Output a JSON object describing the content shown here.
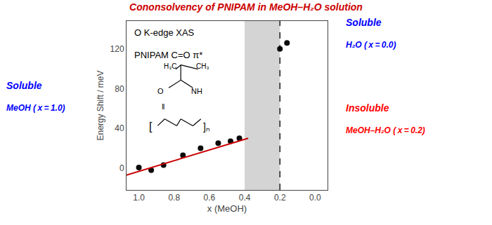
{
  "chart_data": {
    "type": "scatter",
    "title": "Cononsolvency of PNIPAM in MeOH–H₂O solution",
    "title_color": "#cc0000",
    "xlabel": "x (MeOH)",
    "ylabel": "Energy Shift / meV",
    "xlim": [
      1.07,
      -0.07
    ],
    "ylim": [
      -22,
      148
    ],
    "xticks": [
      {
        "value": 1.0,
        "label": "1.0"
      },
      0.8,
      0.6,
      0.4,
      0.2,
      {
        "value": 0.0,
        "label": "0.0"
      }
    ],
    "yticks": [
      0,
      40,
      80,
      120
    ],
    "series": [
      {
        "type": "scatter",
        "color": "#0a0a0a",
        "x": [
          1.0,
          0.93,
          0.86,
          0.75,
          0.65,
          0.55,
          0.48,
          0.43,
          0.2,
          0.16
        ],
        "values": [
          0.5,
          -2,
          3,
          13,
          20,
          25,
          27,
          30,
          120,
          126
        ]
      },
      {
        "type": "line",
        "color": "#cc0000",
        "x": [
          1.07,
          0.38
        ],
        "values": [
          -7,
          30
        ]
      }
    ],
    "shade": {
      "x": [
        0.4,
        0.2
      ],
      "color": "#a0a0a0"
    },
    "vline": {
      "x": 0.2,
      "line_style": "dashed"
    },
    "inset_texts": [
      "O K-edge XAS",
      "PNIPAM C=O π*"
    ],
    "structure_texts": [
      "H₃C",
      "CH₃",
      "O",
      "NH",
      "‖",
      "[",
      "]ₙ"
    ],
    "labels": [
      {
        "text": "Soluble",
        "color": "blue"
      },
      {
        "text": "Soluble",
        "color": "blue"
      },
      {
        "text": "Insoluble",
        "color": "red"
      },
      {
        "text": "MeOH ( x = 1.0)",
        "color": "blue"
      },
      {
        "text": "H₂O ( x = 0.0)",
        "color": "blue"
      },
      {
        "text": "MeOH–H₂O ( x = 0.2)",
        "color": "red"
      }
    ]
  }
}
